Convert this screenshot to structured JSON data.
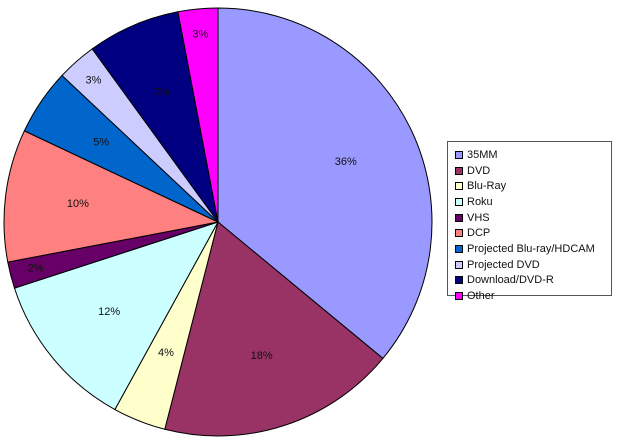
{
  "chart_data": {
    "type": "pie",
    "title": "",
    "legend_position": "right",
    "slices": [
      {
        "name": "35MM",
        "value": 36,
        "label": "36%",
        "color": "#9999ff",
        "label_color": "#111111"
      },
      {
        "name": "DVD",
        "value": 18,
        "label": "18%",
        "color": "#993366",
        "label_color": "#111111"
      },
      {
        "name": "Blu-Ray",
        "value": 4,
        "label": "4%",
        "color": "#ffffcc",
        "label_color": "#111111"
      },
      {
        "name": "Roku",
        "value": 12,
        "label": "12%",
        "color": "#ccffff",
        "label_color": "#111111"
      },
      {
        "name": "VHS",
        "value": 2,
        "label": "2%",
        "color": "#660066",
        "label_color": "#111111"
      },
      {
        "name": "DCP",
        "value": 10,
        "label": "10%",
        "color": "#ff8080",
        "label_color": "#111111"
      },
      {
        "name": "Projected Blu-ray/HDCAM",
        "value": 5,
        "label": "5%",
        "color": "#0066cc",
        "label_color": "#111111"
      },
      {
        "name": "Projected DVD",
        "value": 3,
        "label": "3%",
        "color": "#ccccff",
        "label_color": "#111111"
      },
      {
        "name": "Download/DVD-R",
        "value": 7,
        "label": "7%",
        "color": "#000080",
        "label_color": "#ffffff"
      },
      {
        "name": "Other",
        "value": 3,
        "label": "3%",
        "color": "#ff00ff",
        "label_color": "#111111"
      }
    ]
  }
}
